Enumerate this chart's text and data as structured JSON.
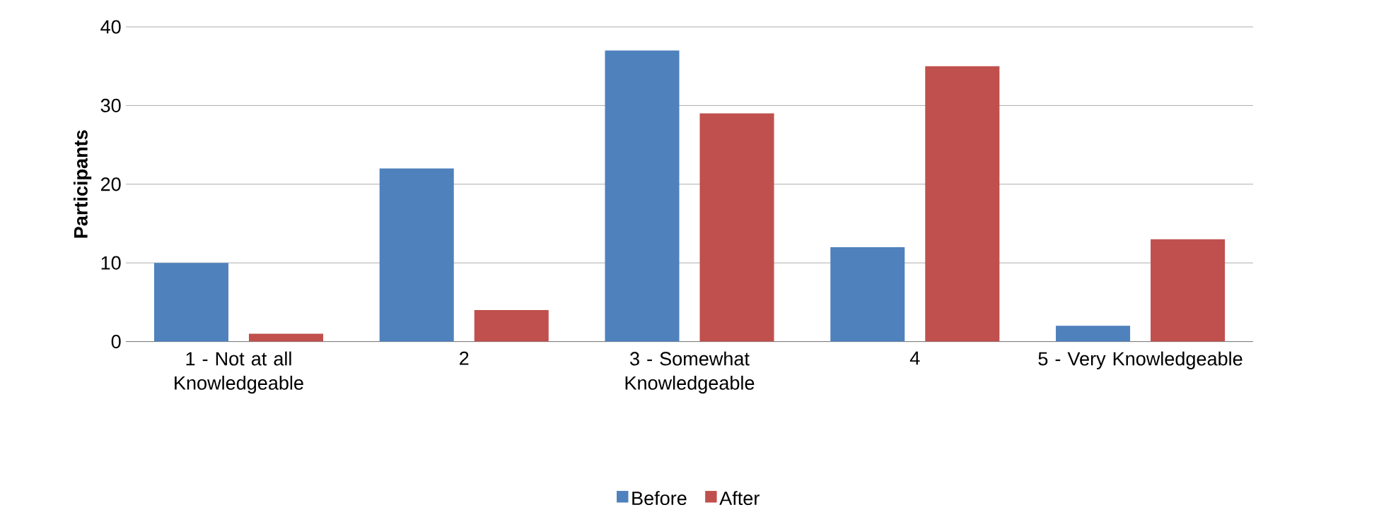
{
  "chart_data": {
    "type": "bar",
    "ylabel": "Participants",
    "categories": [
      "1 - Not at all Knowledgeable",
      "2",
      "3 - Somewhat Knowledgeable",
      "4",
      "5 - Very Knowledgeable"
    ],
    "series": [
      {
        "name": "Before",
        "color": "#4f81bd",
        "values": [
          10,
          22,
          37,
          12,
          2
        ]
      },
      {
        "name": "After",
        "color": "#c0504d",
        "values": [
          1,
          4,
          29,
          35,
          13
        ]
      }
    ],
    "ylim": [
      0,
      40
    ],
    "yticks": [
      0,
      10,
      20,
      30,
      40
    ],
    "grid": "y",
    "legend": "bottom"
  }
}
